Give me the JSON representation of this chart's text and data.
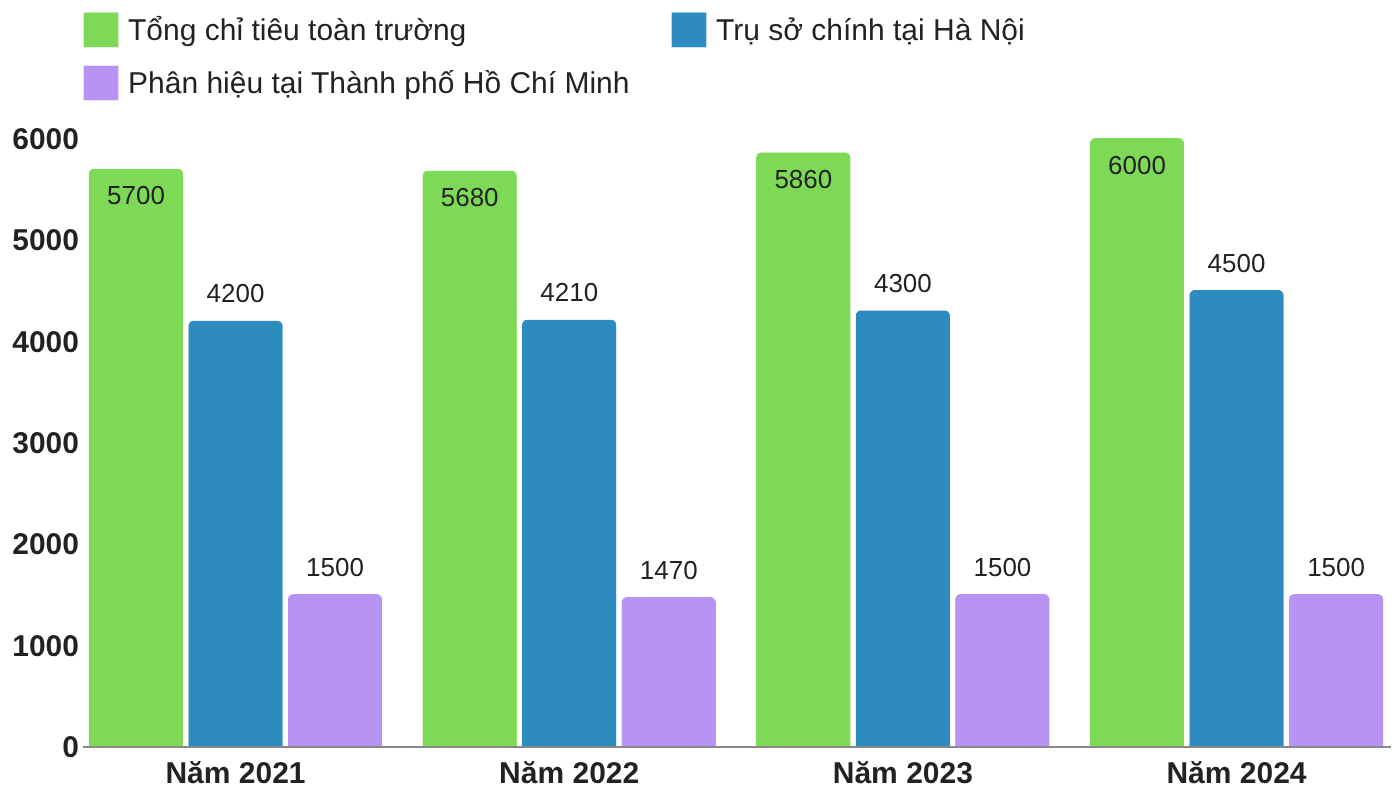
{
  "chart_data": {
    "type": "bar",
    "categories": [
      "Năm 2021",
      "Năm 2022",
      "Năm 2023",
      "Năm 2024"
    ],
    "series": [
      {
        "name": "Tổng chỉ tiêu toàn trường",
        "color": "#7ed957",
        "values": [
          5700,
          5680,
          5860,
          6000
        ]
      },
      {
        "name": "Trụ sở chính tại Hà Nội",
        "color": "#2e8bc0",
        "values": [
          4200,
          4210,
          4300,
          4500
        ]
      },
      {
        "name": "Phân hiệu tại Thành phố Hồ Chí Minh",
        "color": "#b794f4",
        "values": [
          1500,
          1470,
          1500,
          1500
        ]
      }
    ],
    "ylim": [
      0,
      6000
    ],
    "yticks": [
      0,
      1000,
      2000,
      3000,
      4000,
      5000,
      6000
    ],
    "data_labels": true,
    "legend": "top",
    "grid": false
  }
}
